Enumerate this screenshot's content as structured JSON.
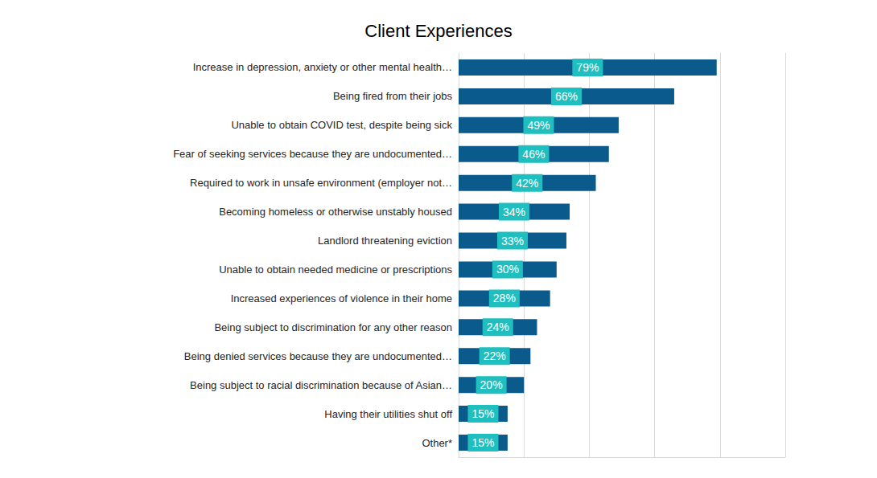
{
  "chart_data": {
    "type": "bar",
    "title": "Client Experiences",
    "orientation": "horizontal",
    "categories": [
      "Increase in depression, anxiety or other mental health…",
      "Being fired from their jobs",
      "Unable to obtain COVID test, despite being sick",
      "Fear of seeking services because they are undocumented…",
      "Required to work in unsafe environment (employer not…",
      "Becoming homeless or otherwise unstably housed",
      "Landlord threatening eviction",
      "Unable to obtain needed medicine or prescriptions",
      "Increased experiences of violence in their home",
      "Being subject to discrimination for any other reason",
      "Being denied services because they are undocumented…",
      "Being subject to racial discrimination because of Asian…",
      "Having their utilities shut off",
      "Other*"
    ],
    "values": [
      79,
      66,
      49,
      46,
      42,
      34,
      33,
      30,
      28,
      24,
      22,
      20,
      15,
      15
    ],
    "value_labels": [
      "79%",
      "66%",
      "49%",
      "46%",
      "42%",
      "34%",
      "33%",
      "30%",
      "28%",
      "24%",
      "22%",
      "20%",
      "15%",
      "15%"
    ],
    "color": "#0b5a8c",
    "xlim": [
      0,
      100
    ],
    "xticks": [
      0,
      20,
      40,
      60,
      80,
      100
    ],
    "grid": true,
    "data_labels": true,
    "tick_labels": "y"
  }
}
